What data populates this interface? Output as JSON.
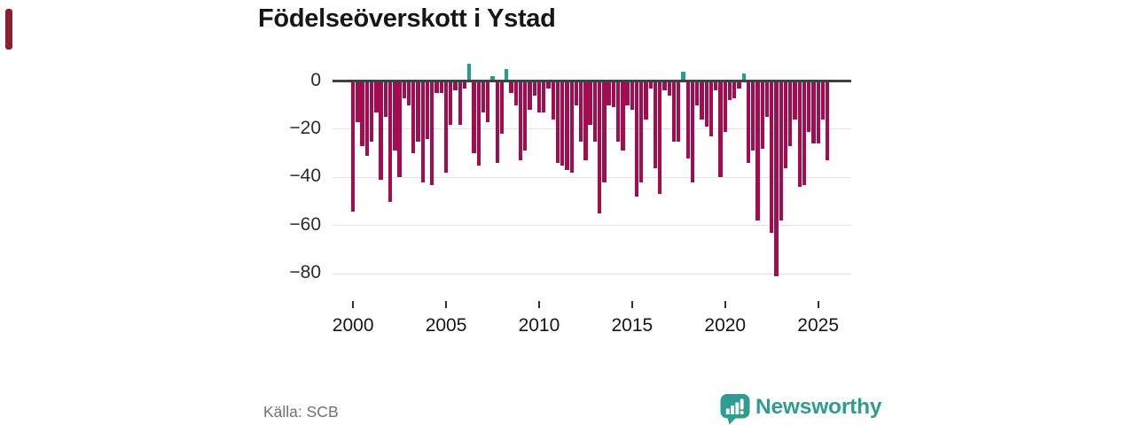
{
  "title": "Födelseöverskott i Ystad",
  "source": "Källa: SCB",
  "brand": {
    "name": "Newsworthy",
    "color": "#2f9c90",
    "logo_icon": "bar-chart-speech-bubble-icon"
  },
  "colors": {
    "bar_negative": "#a50b4f",
    "bar_positive": "#1fa191",
    "zero_line": "#404040",
    "gridline": "#e3e3e3",
    "accent_strip": "#8c2030",
    "axis_text": "#2b2b2b"
  },
  "chart_data": {
    "type": "bar",
    "title": "Födelseöverskott i Ystad",
    "xlabel": "",
    "ylabel": "",
    "frequency": "quarterly",
    "x_start_year": 2000,
    "xticks": [
      2000,
      2005,
      2010,
      2015,
      2020,
      2025
    ],
    "yticks": [
      0,
      -20,
      -40,
      -60,
      -80
    ],
    "ylim": [
      -88,
      10
    ],
    "grid": true,
    "legend": "none",
    "values": [
      -54,
      -17,
      -27,
      -31,
      -25,
      -13,
      -41,
      -15,
      -50,
      -29,
      -40,
      -7,
      -10,
      -30,
      -25,
      -42,
      -24,
      -43,
      -5,
      -5,
      -38,
      -18,
      -4,
      -18,
      -3,
      7,
      -30,
      -35,
      -13,
      -17,
      2,
      -34,
      -22,
      5,
      -5,
      -10,
      -33,
      -29,
      -12,
      -6,
      -13,
      -13,
      -3,
      -16,
      -34,
      -35,
      -37,
      -38,
      -10,
      -25,
      -33,
      -18,
      -25,
      -55,
      -42,
      -10,
      -11,
      -25,
      -29,
      -10,
      -12,
      -48,
      -42,
      -16,
      -3,
      -36,
      -47,
      -4,
      -6,
      -25,
      -25,
      4,
      -32,
      -42,
      -10,
      -16,
      -19,
      -23,
      -4,
      -40,
      -21,
      -8,
      -7,
      -3,
      3,
      -34,
      -29,
      -58,
      -28,
      -15,
      -63,
      -81,
      -58,
      -36,
      -27,
      -16,
      -44,
      -43,
      -21,
      -26,
      -26,
      -16,
      -33
    ]
  }
}
